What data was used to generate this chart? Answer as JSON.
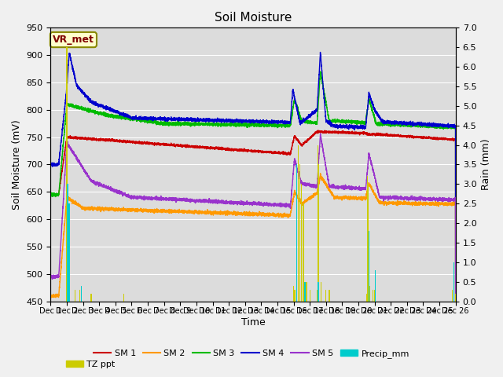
{
  "title": "Soil Moisture",
  "xlabel": "Time",
  "ylabel_left": "Soil Moisture (mV)",
  "ylabel_right": "Rain (mm)",
  "ylim_left": [
    450,
    950
  ],
  "ylim_right": [
    0.0,
    7.0
  ],
  "yticks_left": [
    450,
    500,
    550,
    600,
    650,
    700,
    750,
    800,
    850,
    900,
    950
  ],
  "yticks_right": [
    0.0,
    0.5,
    1.0,
    1.5,
    2.0,
    2.5,
    3.0,
    3.5,
    4.0,
    4.5,
    5.0,
    5.5,
    6.0,
    6.5,
    7.0
  ],
  "colors": {
    "SM1": "#cc0000",
    "SM2": "#ff9900",
    "SM3": "#00bb00",
    "SM4": "#0000cc",
    "SM5": "#9933cc",
    "Precip": "#00cccc",
    "TZ": "#cccc00"
  },
  "background_color": "#e8e8e8",
  "plot_bg": "#dcdcdc",
  "annotation_text": "VR_met",
  "annotation_color": "#800000",
  "annotation_bg": "#ffffcc",
  "annotation_border": "#888800"
}
